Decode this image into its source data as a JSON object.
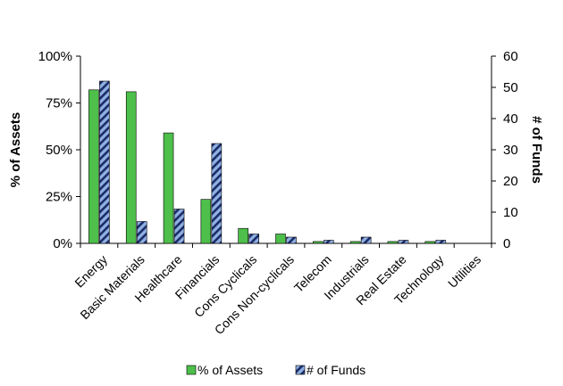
{
  "chart_data": {
    "type": "bar",
    "categories": [
      "Energy",
      "Basic Materials",
      "Healthcare",
      "Financials",
      "Cons Cyclicals",
      "Cons Non-cyclicals",
      "Telecom",
      "Industrials",
      "Real Estate",
      "Technology",
      "Utilities"
    ],
    "series": [
      {
        "name": "% of Assets",
        "axis": "left",
        "color": "#4dbf4a",
        "pattern": "solid",
        "values": [
          82,
          81,
          59,
          23.5,
          8,
          5,
          1,
          1,
          1,
          1,
          0
        ]
      },
      {
        "name": "# of Funds",
        "axis": "right",
        "color": "#8fb0e0",
        "pattern": "diagonal-stripes",
        "values": [
          52,
          7,
          11,
          32,
          3,
          2,
          1,
          2,
          1,
          1,
          0
        ]
      }
    ],
    "ylabel_left": "% of Assets",
    "ylabel_right": "# of Funds",
    "ylim_left": [
      0,
      100
    ],
    "ylim_right": [
      0,
      60
    ],
    "yticks_left": [
      "0%",
      "25%",
      "50%",
      "75%",
      "100%"
    ],
    "yticks_left_values": [
      0,
      25,
      50,
      75,
      100
    ],
    "yticks_right": [
      "0",
      "10",
      "20",
      "30",
      "40",
      "50",
      "60"
    ],
    "yticks_right_values": [
      0,
      10,
      20,
      30,
      40,
      50,
      60
    ],
    "grid": false,
    "legend_position": "bottom"
  }
}
